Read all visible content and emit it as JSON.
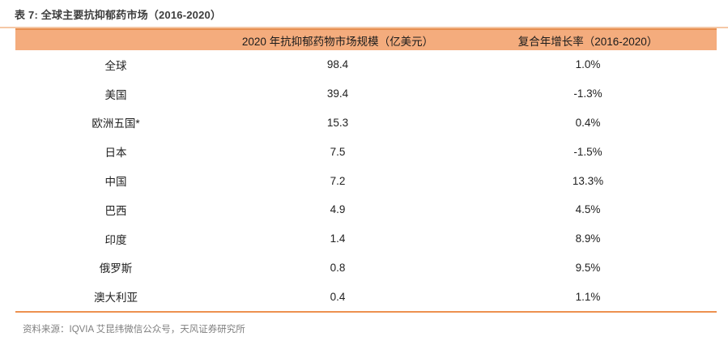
{
  "title": "表 7: 全球主要抗抑郁药市场（2016-2020）",
  "table": {
    "header": {
      "region_label": "",
      "market_size_label": "2020 年抗抑郁药物市场规模（亿美元）",
      "cagr_label": "复合年增长率（2016-2020）"
    },
    "rows": [
      {
        "region": "全球",
        "market_size": "98.4",
        "cagr": "1.0%"
      },
      {
        "region": "美国",
        "market_size": "39.4",
        "cagr": "-1.3%"
      },
      {
        "region": "欧洲五国*",
        "market_size": "15.3",
        "cagr": "0.4%"
      },
      {
        "region": "日本",
        "market_size": "7.5",
        "cagr": "-1.5%"
      },
      {
        "region": "中国",
        "market_size": "7.2",
        "cagr": "13.3%"
      },
      {
        "region": "巴西",
        "market_size": "4.9",
        "cagr": "4.5%"
      },
      {
        "region": "印度",
        "market_size": "1.4",
        "cagr": "8.9%"
      },
      {
        "region": "俄罗斯",
        "market_size": "0.8",
        "cagr": "9.5%"
      },
      {
        "region": "澳大利亚",
        "market_size": "0.4",
        "cagr": "1.1%"
      }
    ]
  },
  "footer": {
    "source": "资料来源：IQVIA 艾昆纬微信公众号，天风证券研究所"
  },
  "colors": {
    "header_fill": "#f4ac7d",
    "header_top_border": "#e78f51",
    "title_rule": "#f5c8a6",
    "table_bottom_border": "#ed9150",
    "title_text": "#3d3d3d",
    "body_text": "#212121",
    "source_text": "#7f7f7f"
  }
}
